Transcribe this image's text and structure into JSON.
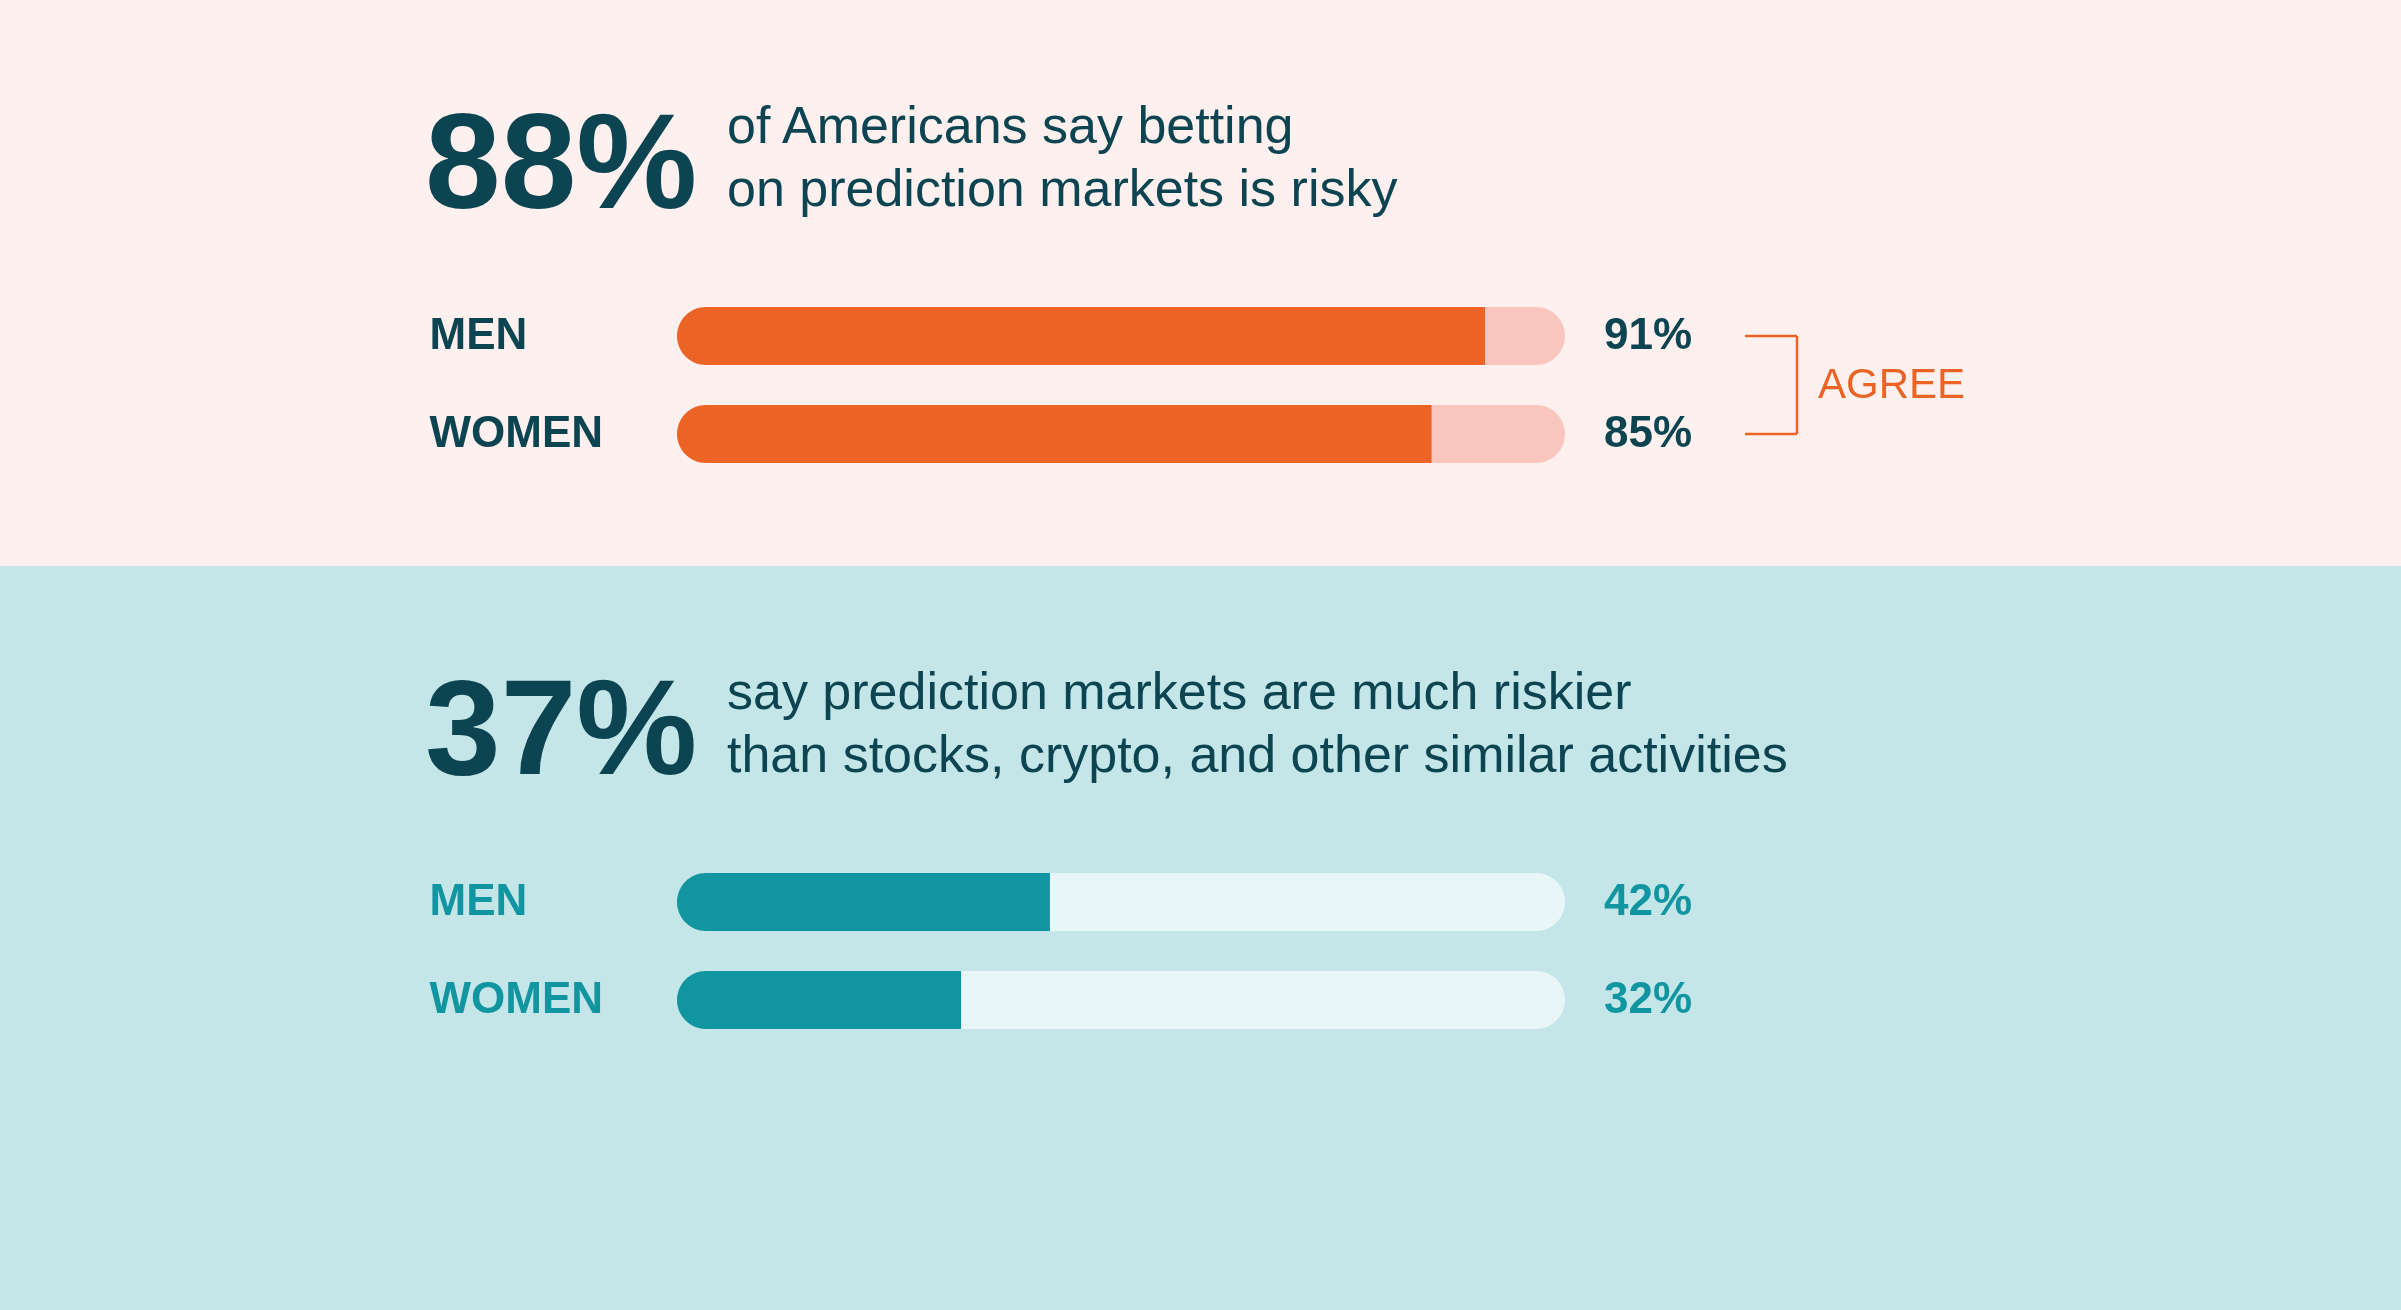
{
  "chart_data": [
    {
      "type": "bar",
      "orientation": "horizontal",
      "stacked": true,
      "title": "88%",
      "subtitle": "of Americans say betting\non prediction markets is risky",
      "categories": [
        "MEN",
        "WOMEN"
      ],
      "series": [
        {
          "color": "#eb6325",
          "values": [
            91,
            85
          ],
          "value_labels": [
            "91%",
            "85%"
          ]
        },
        {
          "color": "#f9c5bc",
          "values": [
            9,
            15
          ]
        }
      ],
      "xlim": [
        0,
        100
      ],
      "tick_labels": "y",
      "annotations": [
        "AGREE"
      ]
    },
    {
      "type": "bar",
      "orientation": "horizontal",
      "stacked": true,
      "title": "37%",
      "subtitle": "say prediction markets are much riskier\nthan stocks, crypto, and other similar activities",
      "categories": [
        "MEN",
        "WOMEN"
      ],
      "series": [
        {
          "color": "#1195a0",
          "values": [
            42,
            32
          ],
          "value_labels": [
            "42%",
            "32%"
          ]
        },
        {
          "color": "#e8f6f7",
          "values": [
            58,
            68
          ]
        }
      ],
      "xlim": [
        0,
        100
      ],
      "tick_labels": "y"
    }
  ]
}
